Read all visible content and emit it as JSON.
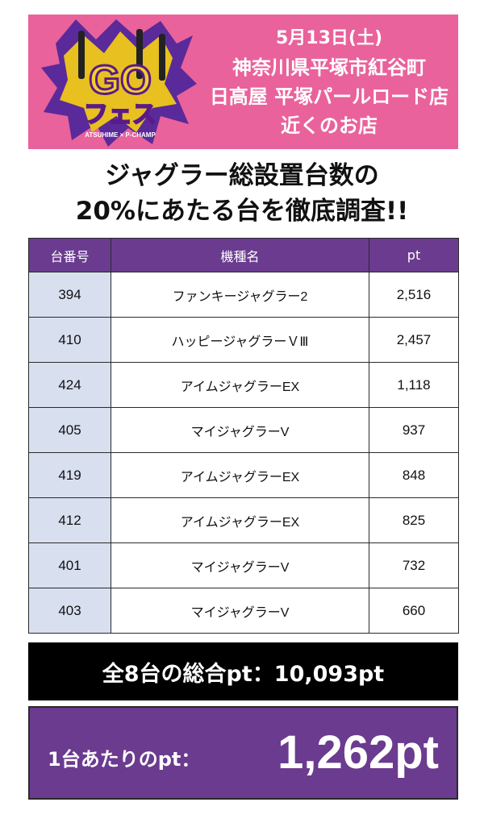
{
  "banner": {
    "logo": {
      "main": "GO",
      "sub": "フェス",
      "tag": "ATSUHIME × P-CHAMP"
    },
    "date": "5月13日(土)",
    "location_line1": "神奈川県平塚市紅谷町",
    "location_line2": "日高屋 平塚パールロード店",
    "location_line3": "近くのお店",
    "background_color": "#e9629b"
  },
  "headline": {
    "line1": "ジャグラー総設置台数の",
    "line2": "20%にあたる台を徹底調査!!"
  },
  "table": {
    "headers": [
      "台番号",
      "機種名",
      "pt"
    ],
    "rows": [
      {
        "number": "394",
        "model": "ファンキージャグラー2",
        "pt": "2,516"
      },
      {
        "number": "410",
        "model": "ハッピージャグラーＶⅢ",
        "pt": "2,457"
      },
      {
        "number": "424",
        "model": "アイムジャグラーEX",
        "pt": "1,118"
      },
      {
        "number": "405",
        "model": "マイジャグラーV",
        "pt": "937"
      },
      {
        "number": "419",
        "model": "アイムジャグラーEX",
        "pt": "848"
      },
      {
        "number": "412",
        "model": "アイムジャグラーEX",
        "pt": "825"
      },
      {
        "number": "401",
        "model": "マイジャグラーV",
        "pt": "732"
      },
      {
        "number": "403",
        "model": "マイジャグラーV",
        "pt": "660"
      }
    ],
    "header_color": "#6a3b8f",
    "number_cell_color": "#d8e0f0"
  },
  "summary": {
    "total_text": "全8台の総合pt：10,093pt",
    "average_label": "1台あたりのpt：",
    "average_value": "1,262pt"
  }
}
